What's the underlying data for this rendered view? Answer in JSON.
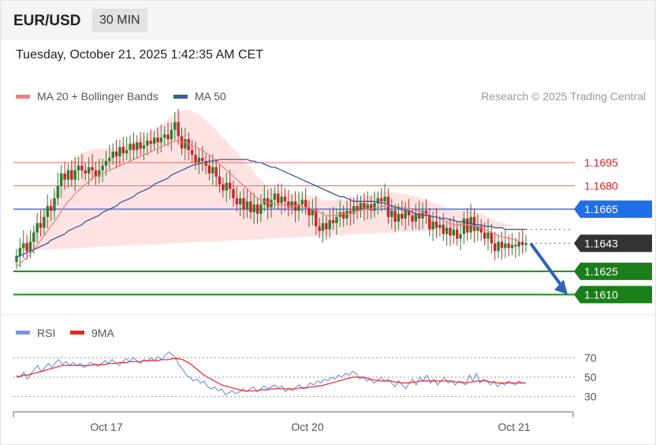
{
  "header": {
    "symbol": "EUR/USD",
    "interval": "30 MIN",
    "datetime": "Tuesday, October 21, 2025 1:42:35 AM CET"
  },
  "legend": {
    "ma20": "MA 20 + Bollinger Bands",
    "ma50": "MA 50",
    "copyright": "Research © 2025 Trading Central"
  },
  "rsi_legend": {
    "rsi": "RSI",
    "ma9": "9MA"
  },
  "colors": {
    "up": "#2e7d32",
    "down": "#c62828",
    "ma20": "#f08080",
    "ma50": "#3a5a9c",
    "bollinger_fill": "#ffe0e0",
    "resistance": "#ff6666",
    "pivot": "#6f8ff0",
    "support": "#1f8a1f",
    "rsi": "#7b96df",
    "rsi_ma": "#ee2222",
    "arrow": "#2f63b5",
    "current": "#333333"
  },
  "chart_data": [
    {
      "type": "candlestick",
      "x_ticks": [
        "Oct 17",
        "Oct 20",
        "Oct 21"
      ],
      "ylim": [
        1.1596,
        1.1728
      ],
      "levels": [
        {
          "value": 1.1695,
          "label": "1.1695",
          "kind": "resistance"
        },
        {
          "value": 1.168,
          "label": "1.1680",
          "kind": "resistance"
        },
        {
          "value": 1.1665,
          "label": "1.1665",
          "kind": "pivot"
        },
        {
          "value": 1.1643,
          "label": "1.1643",
          "kind": "current"
        },
        {
          "value": 1.1625,
          "label": "1.1625",
          "kind": "support"
        },
        {
          "value": 1.161,
          "label": "1.1610",
          "kind": "support"
        }
      ],
      "close": [
        1.1635,
        1.164,
        1.1643,
        1.1638,
        1.1644,
        1.165,
        1.1656,
        1.1653,
        1.166,
        1.1667,
        1.1664,
        1.1672,
        1.168,
        1.1688,
        1.1684,
        1.169,
        1.1684,
        1.169,
        1.1693,
        1.169,
        1.1688,
        1.1692,
        1.169,
        1.1686,
        1.169,
        1.1693,
        1.1696,
        1.1698,
        1.1702,
        1.1699,
        1.1705,
        1.1701,
        1.1703,
        1.1707,
        1.1703,
        1.1708,
        1.1704,
        1.1706,
        1.1709,
        1.1707,
        1.1711,
        1.1708,
        1.1711,
        1.1713,
        1.171,
        1.1716,
        1.1721,
        1.1712,
        1.1704,
        1.171,
        1.1703,
        1.17,
        1.1695,
        1.1698,
        1.1696,
        1.1693,
        1.1688,
        1.1692,
        1.1686,
        1.1681,
        1.1677,
        1.1682,
        1.1678,
        1.1672,
        1.1668,
        1.1672,
        1.1665,
        1.167,
        1.1663,
        1.1668,
        1.1662,
        1.1668,
        1.1672,
        1.1666,
        1.1671,
        1.1675,
        1.1669,
        1.1673,
        1.167,
        1.1666,
        1.167,
        1.1664,
        1.1668,
        1.1671,
        1.1666,
        1.1661,
        1.1665,
        1.1654,
        1.1651,
        1.1656,
        1.1652,
        1.1658,
        1.1656,
        1.166,
        1.1663,
        1.1659,
        1.1664,
        1.1662,
        1.1667,
        1.1664,
        1.1669,
        1.1665,
        1.1668,
        1.1664,
        1.1669,
        1.1672,
        1.167,
        1.1673,
        1.166,
        1.1664,
        1.1657,
        1.1662,
        1.1659,
        1.1664,
        1.1661,
        1.1657,
        1.1662,
        1.1659,
        1.1664,
        1.1661,
        1.1652,
        1.1657,
        1.1653,
        1.1655,
        1.1649,
        1.1653,
        1.1648,
        1.1652,
        1.1646,
        1.1649,
        1.1659,
        1.165,
        1.166,
        1.1651,
        1.1654,
        1.165,
        1.1646,
        1.165,
        1.1643,
        1.1638,
        1.1644,
        1.164,
        1.1643,
        1.164,
        1.1642,
        1.1641,
        1.1644,
        1.1642,
        1.1643
      ],
      "ma20": [
        1.1628,
        1.163,
        1.1632,
        1.1634,
        1.1636,
        1.1639,
        1.1642,
        1.1645,
        1.1648,
        1.1651,
        1.1654,
        1.1657,
        1.166,
        1.1664,
        1.1667,
        1.167,
        1.1672,
        1.1675,
        1.1677,
        1.1679,
        1.1681,
        1.1683,
        1.1685,
        1.1686,
        1.1687,
        1.1688,
        1.1689,
        1.169,
        1.1691,
        1.1692,
        1.1693,
        1.1694,
        1.1695,
        1.1696,
        1.1697,
        1.1698,
        1.1699,
        1.17,
        1.1701,
        1.1702,
        1.1703,
        1.1704,
        1.1705,
        1.1706,
        1.1707,
        1.1708,
        1.1709,
        1.1709,
        1.1708,
        1.1708,
        1.1707,
        1.1706,
        1.1705,
        1.1704,
        1.1703,
        1.1701,
        1.17,
        1.1698,
        1.1696,
        1.1694,
        1.1692,
        1.169,
        1.1688,
        1.1686,
        1.1684,
        1.1682,
        1.168,
        1.1678,
        1.1676,
        1.1674,
        1.1672,
        1.1671,
        1.167,
        1.1669,
        1.1669,
        1.1668,
        1.1668,
        1.1668,
        1.1668,
        1.1667,
        1.1667,
        1.1667,
        1.1667,
        1.1667,
        1.1666,
        1.1666,
        1.1665,
        1.1664,
        1.1663,
        1.1662,
        1.1661,
        1.1661,
        1.1661,
        1.1661,
        1.1662,
        1.1662,
        1.1662,
        1.1663,
        1.1663,
        1.1664,
        1.1664,
        1.1665,
        1.1665,
        1.1665,
        1.1666,
        1.1666,
        1.1667,
        1.1667,
        1.1667,
        1.1667,
        1.1667,
        1.1666,
        1.1666,
        1.1666,
        1.1665,
        1.1665,
        1.1664,
        1.1664,
        1.1663,
        1.1662,
        1.1661,
        1.166,
        1.166,
        1.1659,
        1.1658,
        1.1657,
        1.1656,
        1.1655,
        1.1655,
        1.1655,
        1.1655,
        1.1655,
        1.1655,
        1.1654,
        1.1654,
        1.1653,
        1.1652,
        1.1651,
        1.165,
        1.1649,
        1.1648,
        1.1647,
        1.1647,
        1.1646,
        1.1646,
        1.1645,
        1.1645
      ],
      "ma50": [
        1.1634,
        1.1635,
        1.1636,
        1.1637,
        1.1638,
        1.1639,
        1.164,
        1.1641,
        1.1642,
        1.1643,
        1.1645,
        1.1646,
        1.1647,
        1.1648,
        1.1649,
        1.1651,
        1.1652,
        1.1653,
        1.1654,
        1.1655,
        1.1657,
        1.1658,
        1.1659,
        1.166,
        1.1661,
        1.1663,
        1.1664,
        1.1665,
        1.1666,
        1.1667,
        1.1669,
        1.167,
        1.1671,
        1.1672,
        1.1673,
        1.1675,
        1.1676,
        1.1677,
        1.1678,
        1.1679,
        1.1681,
        1.1682,
        1.1683,
        1.1684,
        1.1685,
        1.1687,
        1.1688,
        1.1689,
        1.169,
        1.1691,
        1.1692,
        1.1693,
        1.1694,
        1.1694,
        1.1695,
        1.1695,
        1.1696,
        1.1696,
        1.1696,
        1.1697,
        1.1697,
        1.1697,
        1.1697,
        1.1697,
        1.1697,
        1.1697,
        1.1697,
        1.1697,
        1.1696,
        1.1696,
        1.1695,
        1.1695,
        1.1694,
        1.1693,
        1.1692,
        1.1692,
        1.1691,
        1.169,
        1.1689,
        1.1688,
        1.1687,
        1.1686,
        1.1685,
        1.1684,
        1.1683,
        1.1682,
        1.1681,
        1.168,
        1.1679,
        1.1678,
        1.1677,
        1.1676,
        1.1675,
        1.1674,
        1.1673,
        1.1673,
        1.1672,
        1.1671,
        1.167,
        1.167,
        1.167,
        1.167,
        1.167,
        1.167,
        1.167,
        1.1669,
        1.1669,
        1.1669,
        1.1668,
        1.1667,
        1.1666,
        1.1666,
        1.1665,
        1.1664,
        1.1664,
        1.1663,
        1.1662,
        1.1662,
        1.1661,
        1.1661,
        1.1661,
        1.166,
        1.166,
        1.1659,
        1.1659,
        1.1659,
        1.1658,
        1.1658,
        1.1657,
        1.1657,
        1.1657,
        1.1656,
        1.1656,
        1.1655,
        1.1655,
        1.1655,
        1.1654,
        1.1654,
        1.1654,
        1.1653,
        1.1653,
        1.1653,
        1.1652,
        1.1652,
        1.1652,
        1.1652,
        1.1652,
        1.1652,
        1.1652
      ],
      "band_width": [
        0.001,
        0.001,
        0.0011,
        0.0011,
        0.0012,
        0.0012,
        0.0013,
        0.0014,
        0.0015,
        0.0016,
        0.0017,
        0.0018,
        0.0019,
        0.002,
        0.0021,
        0.0022,
        0.0023,
        0.0023,
        0.0023,
        0.0022,
        0.0021,
        0.002,
        0.0019,
        0.0018,
        0.0017,
        0.0016,
        0.0015,
        0.0014,
        0.0013,
        0.0012,
        0.0012,
        0.0012,
        0.0012,
        0.0012,
        0.0012,
        0.0012,
        0.0012,
        0.0012,
        0.0012,
        0.0013,
        0.0013,
        0.0014,
        0.0014,
        0.0015,
        0.0016,
        0.0017,
        0.0018,
        0.0019,
        0.002,
        0.0021,
        0.0022,
        0.0022,
        0.0022,
        0.0022,
        0.0021,
        0.0021,
        0.002,
        0.002,
        0.002,
        0.0019,
        0.0019,
        0.0019,
        0.0018,
        0.0018,
        0.0018,
        0.0017,
        0.0017,
        0.0016,
        0.0016,
        0.0015,
        0.0014,
        0.0013,
        0.0012,
        0.0011,
        0.001,
        0.0009,
        0.0009,
        0.0008,
        0.0008,
        0.0008,
        0.0008,
        0.0008,
        0.0008,
        0.0008,
        0.0008,
        0.0008,
        0.0008,
        0.0009,
        0.0009,
        0.0009,
        0.001,
        0.001,
        0.001,
        0.001,
        0.001,
        0.0009,
        0.0009,
        0.0009,
        0.0009,
        0.0009,
        0.0009,
        0.0009,
        0.0009,
        0.0009,
        0.0009,
        0.0009,
        0.0009,
        0.0009,
        0.0009,
        0.0009,
        0.0009,
        0.0009,
        0.0009,
        0.0009,
        0.0009,
        0.0009,
        0.0009,
        0.0009,
        0.0009,
        0.0009,
        0.0009,
        0.0009,
        0.0009,
        0.0009,
        0.0009,
        0.0009,
        0.0009,
        0.0009,
        0.0009,
        0.0009,
        0.0009,
        0.0009,
        0.0009,
        0.0009,
        0.0009,
        0.0009,
        0.0009,
        0.0009,
        0.0009,
        0.0009,
        0.0009,
        0.0009,
        0.0009,
        0.0009,
        0.0009,
        0.0009,
        0.0009,
        0.0009,
        0.0009
      ],
      "projection": {
        "from": 1.1643,
        "to": 1.161
      }
    },
    {
      "type": "line",
      "yticks": [
        70,
        50,
        30
      ],
      "ylim": [
        20,
        80
      ],
      "series": [
        {
          "name": "RSI",
          "values": [
            52,
            50,
            55,
            48,
            53,
            58,
            62,
            55,
            60,
            64,
            60,
            65,
            68,
            63,
            66,
            62,
            65,
            62,
            64,
            60,
            62,
            65,
            63,
            61,
            64,
            67,
            64,
            68,
            65,
            62,
            66,
            69,
            66,
            70,
            67,
            64,
            68,
            66,
            70,
            67,
            71,
            68,
            72,
            76,
            73,
            70,
            62,
            58,
            52,
            50,
            46,
            48,
            44,
            46,
            40,
            38,
            40,
            36,
            38,
            32,
            34,
            36,
            33,
            35,
            38,
            35,
            38,
            40,
            35,
            38,
            41,
            38,
            40,
            42,
            39,
            41,
            35,
            38,
            36,
            40,
            42,
            38,
            40,
            44,
            42,
            46,
            44,
            48,
            46,
            50,
            48,
            52,
            50,
            54,
            52,
            56,
            54,
            48,
            50,
            46,
            48,
            44,
            46,
            50,
            46,
            48,
            44,
            40,
            46,
            42,
            38,
            44,
            48,
            42,
            50,
            46,
            52,
            44,
            48,
            42,
            46,
            50,
            44,
            46,
            42,
            46,
            44,
            42,
            52,
            46,
            54,
            44,
            48,
            46,
            42,
            46,
            40,
            44,
            42,
            46,
            44,
            42,
            46,
            44,
            44
          ]
        },
        {
          "name": "9MA",
          "values": [
            50,
            51,
            52,
            52,
            53,
            54,
            55,
            56,
            57,
            58,
            59,
            60,
            61,
            62,
            62,
            62,
            62,
            62,
            62,
            62,
            62,
            62,
            63,
            63,
            63,
            63,
            64,
            64,
            64,
            65,
            65,
            65,
            66,
            66,
            66,
            66,
            67,
            67,
            67,
            67,
            67,
            68,
            68,
            68,
            69,
            69,
            69,
            68,
            66,
            64,
            61,
            58,
            55,
            52,
            50,
            48,
            46,
            44,
            42,
            41,
            40,
            39,
            38,
            37,
            36,
            36,
            36,
            36,
            36,
            37,
            37,
            37,
            38,
            38,
            38,
            38,
            38,
            38,
            38,
            38,
            39,
            39,
            39,
            40,
            40,
            41,
            41,
            42,
            43,
            44,
            45,
            46,
            47,
            48,
            49,
            50,
            50,
            50,
            50,
            49,
            48,
            47,
            47,
            46,
            46,
            46,
            46,
            45,
            45,
            44,
            44,
            44,
            45,
            45,
            46,
            46,
            46,
            46,
            46,
            46,
            46,
            46,
            46,
            46,
            45,
            45,
            45,
            44,
            45,
            45,
            46,
            46,
            46,
            46,
            45,
            45,
            44,
            44,
            44,
            44,
            44,
            44,
            44,
            44,
            44
          ]
        }
      ]
    }
  ]
}
